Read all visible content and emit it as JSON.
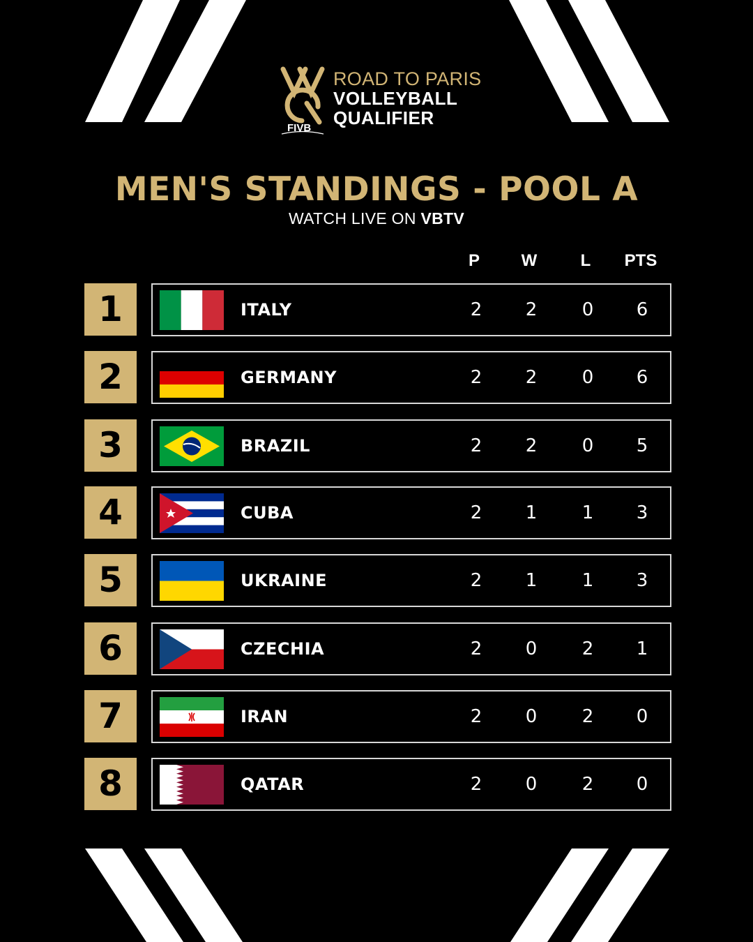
{
  "logo": {
    "line1": "ROAD TO PARIS",
    "line2": "VOLLEYBALL",
    "line3": "QUALIFIER",
    "brand": "FIVB"
  },
  "title": "MEN'S STANDINGS - POOL A",
  "subtitle": {
    "prefix": "WATCH LIVE ON ",
    "highlight": "VBTV"
  },
  "columns": {
    "p": "P",
    "w": "W",
    "l": "L",
    "pts": "PTS"
  },
  "colors": {
    "gold": "#d2b575",
    "background": "#000000",
    "text": "#ffffff"
  },
  "standings": [
    {
      "rank": "1",
      "country": "ITALY",
      "flag": "italy-flag",
      "p": "2",
      "w": "2",
      "l": "0",
      "pts": "6"
    },
    {
      "rank": "2",
      "country": "GERMANY",
      "flag": "germany-flag",
      "p": "2",
      "w": "2",
      "l": "0",
      "pts": "6"
    },
    {
      "rank": "3",
      "country": "BRAZIL",
      "flag": "brazil-flag",
      "p": "2",
      "w": "2",
      "l": "0",
      "pts": "5"
    },
    {
      "rank": "4",
      "country": "CUBA",
      "flag": "cuba-flag",
      "p": "2",
      "w": "1",
      "l": "1",
      "pts": "3"
    },
    {
      "rank": "5",
      "country": "UKRAINE",
      "flag": "ukraine-flag",
      "p": "2",
      "w": "1",
      "l": "1",
      "pts": "3"
    },
    {
      "rank": "6",
      "country": "CZECHIA",
      "flag": "czechia-flag",
      "p": "2",
      "w": "0",
      "l": "2",
      "pts": "1"
    },
    {
      "rank": "7",
      "country": "IRAN",
      "flag": "iran-flag",
      "p": "2",
      "w": "0",
      "l": "2",
      "pts": "0"
    },
    {
      "rank": "8",
      "country": "QATAR",
      "flag": "qatar-flag",
      "p": "2",
      "w": "0",
      "l": "2",
      "pts": "0"
    }
  ]
}
